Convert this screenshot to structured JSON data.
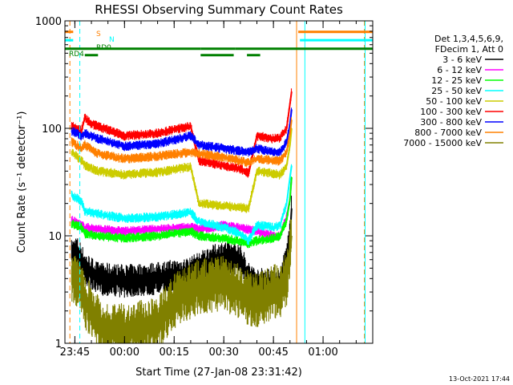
{
  "chart_data": {
    "type": "line",
    "title": "RHESSI Observing Summary Count Rates",
    "xlabel": "Start Time (27-Jan-08 23:31:42)",
    "ylabel": "Count Rate (s⁻¹ detector⁻¹)",
    "yscale": "log",
    "ylim": [
      1,
      1000
    ],
    "xlim_minutes": [
      -18,
      75
    ],
    "x_ticks": [
      {
        "label": "23:45",
        "minute": -15
      },
      {
        "label": "00:00",
        "minute": 0
      },
      {
        "label": "00:15",
        "minute": 15
      },
      {
        "label": "00:30",
        "minute": 30
      },
      {
        "label": "00:45",
        "minute": 45
      },
      {
        "label": "01:00",
        "minute": 60
      }
    ],
    "y_ticks": [
      {
        "label": "1",
        "value": 1
      },
      {
        "label": "10",
        "value": 10
      },
      {
        "label": "100",
        "value": 100
      },
      {
        "label": "1000",
        "value": 1000
      }
    ],
    "legend_header": [
      "Det 1,3,4,5,6,9,",
      "FDecim 1, Att 0"
    ],
    "legend_placement": "right",
    "series": [
      {
        "name": "3 - 6 keV",
        "color": "#000000",
        "x": [
          -16,
          -14.5,
          -13,
          -12,
          -8,
          0,
          10,
          20,
          22.5,
          25,
          30,
          35,
          37.5,
          40,
          45,
          47,
          49,
          50,
          50.5
        ],
        "y": [
          6.5,
          7,
          6,
          5,
          4,
          3.8,
          4,
          4.5,
          5,
          5.5,
          6.3,
          6,
          4,
          3.5,
          3.6,
          3.5,
          6,
          10,
          18
        ]
      },
      {
        "name": "6 - 12 keV",
        "color": "#ff00ff",
        "x": [
          -16,
          -13,
          -12,
          -8,
          0,
          10,
          20,
          22.5,
          30,
          37.5,
          40,
          45,
          47,
          49,
          50,
          50.5
        ],
        "y": [
          14,
          12.5,
          12,
          11.5,
          11,
          11.5,
          12,
          11.5,
          12.5,
          11.5,
          11,
          10,
          10,
          15,
          22,
          35
        ]
      },
      {
        "name": "12 - 25 keV",
        "color": "#00ff00",
        "x": [
          -16,
          -13,
          -12,
          -8,
          0,
          10,
          20,
          22.5,
          30,
          37.5,
          40,
          45,
          47,
          49,
          50,
          50.5
        ],
        "y": [
          13,
          12,
          10.5,
          10,
          9.5,
          10,
          11,
          10,
          9.5,
          8.5,
          9,
          9.5,
          10,
          14,
          22,
          35
        ]
      },
      {
        "name": "25 - 50 keV",
        "color": "#00ffff",
        "x": [
          -16,
          -13,
          -12,
          -8,
          0,
          10,
          20,
          22.5,
          30,
          35,
          37.5,
          40,
          45,
          47,
          49,
          50,
          50.5
        ],
        "y": [
          24,
          21,
          17,
          16,
          14.5,
          15,
          16.5,
          13.5,
          12,
          10.5,
          9,
          12.5,
          12,
          12.5,
          20,
          35,
          45
        ]
      },
      {
        "name": "50 - 100 keV",
        "color": "#cccc00",
        "x": [
          -16,
          -13,
          -12,
          -8,
          0,
          10,
          20,
          22.5,
          30,
          37.5,
          40,
          45,
          47,
          49,
          50,
          50.5
        ],
        "y": [
          60,
          50,
          45,
          40,
          37,
          39,
          44,
          20,
          19,
          18,
          40,
          38,
          37,
          45,
          70,
          100
        ]
      },
      {
        "name": "100 - 300 keV",
        "color": "#ff0000",
        "x": [
          -16,
          -13,
          -12,
          -10,
          0,
          10,
          20,
          22.5,
          30,
          35,
          37.5,
          40,
          45,
          47,
          49,
          50,
          50.5
        ],
        "y": [
          105,
          95,
          125,
          110,
          85,
          90,
          105,
          50,
          45,
          42,
          38,
          85,
          80,
          82,
          100,
          170,
          220
        ]
      },
      {
        "name": "300 - 800 keV",
        "color": "#0000ff",
        "x": [
          -16,
          -13,
          -12,
          -8,
          0,
          10,
          20,
          22.5,
          30,
          37.5,
          40,
          45,
          47,
          49,
          50,
          50.5
        ],
        "y": [
          95,
          85,
          90,
          80,
          68,
          72,
          85,
          70,
          65,
          60,
          65,
          60,
          60,
          75,
          110,
          150
        ]
      },
      {
        "name": "800 - 7000 keV",
        "color": "#ff8000",
        "x": [
          -16,
          -13,
          -12,
          -8,
          0,
          10,
          20,
          22.5,
          30,
          37.5,
          40,
          45,
          47,
          49,
          50,
          50.5
        ],
        "y": [
          75,
          65,
          70,
          58,
          52,
          55,
          60,
          58,
          54,
          48,
          52,
          50,
          50,
          60,
          90,
          120
        ]
      },
      {
        "name": "7000 - 15000 keV",
        "color": "#808000",
        "x": [
          -16,
          -13,
          -12,
          -8,
          -6,
          0,
          10,
          15,
          20,
          22.5,
          30,
          35,
          37.5,
          40,
          45,
          47,
          49,
          50,
          50.5
        ],
        "y": [
          4.5,
          3,
          2.5,
          1.6,
          1.3,
          1.3,
          1.5,
          2.5,
          3,
          3.4,
          3.6,
          3,
          2.6,
          2.5,
          3,
          3,
          4,
          7,
          10
        ]
      }
    ],
    "flag_bars": [
      {
        "label": "S",
        "color": "#ff8000",
        "segments": [
          [
            -18,
            -15.5
          ],
          [
            52.5,
            75
          ]
        ],
        "level": 790
      },
      {
        "label": "N",
        "color": "#00ffff",
        "segments": [
          [
            -18,
            -15.5
          ],
          [
            53,
            75
          ]
        ],
        "level": 660
      },
      {
        "label": "RD0",
        "color": "#008000",
        "segments": [
          [
            -18,
            23
          ],
          [
            23,
            33.5
          ],
          [
            33.5,
            75
          ]
        ],
        "level": 550
      },
      {
        "label": "RD4",
        "color": "#008000",
        "segments": [
          [
            -12,
            -8
          ],
          [
            23,
            33
          ],
          [
            37,
            41
          ]
        ],
        "level": 480
      }
    ],
    "vertical_markers": [
      {
        "minute": -16.5,
        "color": "#ff8000",
        "style": "dashed"
      },
      {
        "minute": -13.5,
        "color": "#00ffff",
        "style": "dashed"
      },
      {
        "minute": 52,
        "color": "#ff8000",
        "style": "solid"
      },
      {
        "minute": 54.5,
        "color": "#00ffff",
        "style": "solid"
      },
      {
        "minute": 72.5,
        "color": "#ff8000",
        "style": "dashed"
      },
      {
        "minute": 72.7,
        "color": "#00ffff",
        "style": "solid"
      }
    ],
    "timestamp": "13-Oct-2021 17:44"
  }
}
